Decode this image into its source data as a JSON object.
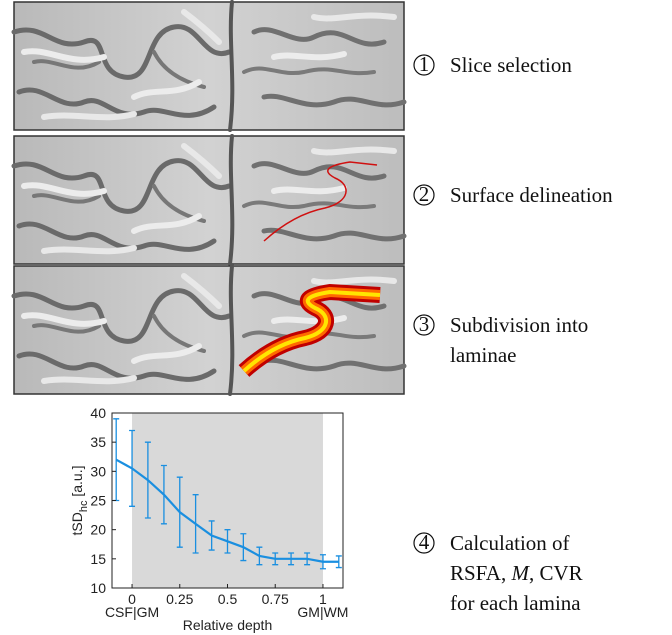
{
  "steps": [
    {
      "marker": "1",
      "lines": [
        "Slice selection"
      ]
    },
    {
      "marker": "2",
      "lines": [
        "Surface delineation"
      ]
    },
    {
      "marker": "3",
      "lines": [
        "Subdivision into",
        "laminae"
      ]
    },
    {
      "marker": "4",
      "lines": [
        "Calculation of",
        [
          "RSFA, ",
          "M",
          ", CVR"
        ],
        "for each lamina"
      ]
    }
  ],
  "chart_data": {
    "type": "line",
    "xlabel": "Relative depth",
    "ylabel": {
      "main": "tSD",
      "sub": "hc",
      "unit": " [a.u.]"
    },
    "x": [
      -0.083,
      0,
      0.083,
      0.167,
      0.25,
      0.333,
      0.417,
      0.5,
      0.583,
      0.667,
      0.75,
      0.833,
      0.917,
      1,
      1.083
    ],
    "series": [
      {
        "name": "tSDhc",
        "color": "#1a8fe0",
        "values": [
          32,
          30.5,
          28.5,
          26,
          23,
          21,
          19,
          18,
          17,
          15.5,
          15,
          15,
          15,
          14.5,
          14.5
        ],
        "errors": [
          7,
          6.5,
          6.5,
          5,
          6,
          5,
          2.5,
          2,
          2.3,
          1.5,
          1,
          1,
          1,
          1.2,
          1
        ]
      }
    ],
    "shade": [
      0,
      1
    ],
    "xlim": [
      -0.105,
      1.105
    ],
    "ylim": [
      10,
      40
    ],
    "xticks": [
      0,
      0.25,
      0.5,
      0.75,
      1
    ],
    "yticks": [
      10,
      15,
      20,
      25,
      30,
      35,
      40
    ],
    "annotations": [
      {
        "x": 0,
        "text": "CSF|GM"
      },
      {
        "x": 1,
        "text": "GM|WM"
      }
    ]
  }
}
